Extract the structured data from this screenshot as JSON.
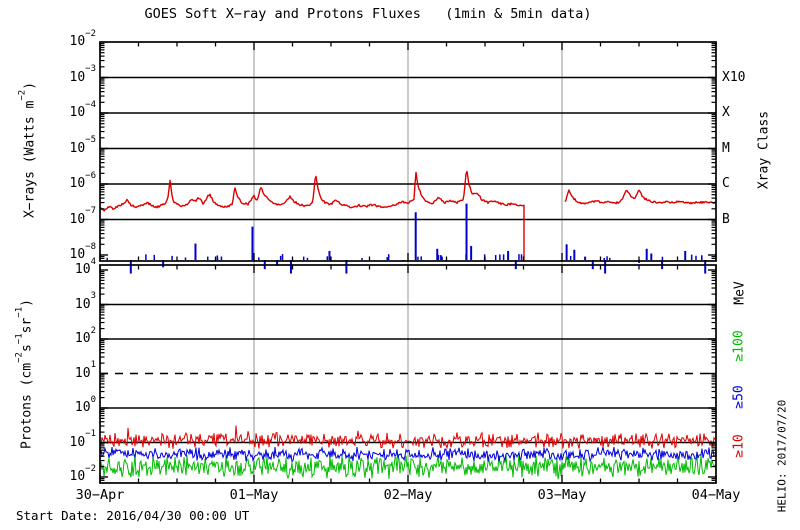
{
  "title": "GOES Soft X−ray and Protons Fluxes   (1min & 5min data)",
  "footer": {
    "start_date": "Start Date: 2016/04/30 00:00 UT"
  },
  "watermark": "HELIO: 2017/07/20",
  "colors": {
    "xray_red": "#dd0000",
    "xray_blue": "#0000cc",
    "proton_ge10": "#dd0000",
    "proton_ge50": "#0000dd",
    "proton_ge100": "#00bb00",
    "day_gridline": "#b4b4b4",
    "frame": "#000000"
  },
  "x_axis": {
    "labels": [
      "30−Apr",
      "01−May",
      "02−May",
      "03−May",
      "04−May"
    ],
    "minor_tick_hours": 6
  },
  "top_panel": {
    "ylabel_segments": [
      {
        "t": "X−rays (Watts m"
      },
      {
        "sup": "−2"
      },
      {
        "t": ")"
      }
    ],
    "tick_exponents": [
      -2,
      -3,
      -4,
      -5,
      -6,
      -7,
      -8
    ],
    "gridline_exponents": [
      -3,
      -4,
      -5,
      -6,
      -7
    ],
    "right_axis_title": "Xray Class",
    "class_labels": [
      {
        "label": "X10",
        "exp": -3
      },
      {
        "label": "X",
        "exp": -4
      },
      {
        "label": "M",
        "exp": -5
      },
      {
        "label": "C",
        "exp": -6
      },
      {
        "label": "B",
        "exp": -7
      }
    ]
  },
  "bottom_panel": {
    "ylabel_segments": [
      {
        "t": "Protons (cm"
      },
      {
        "sup": "−2"
      },
      {
        "t": "s"
      },
      {
        "sup": "−1"
      },
      {
        "t": "sr"
      },
      {
        "sup": "−1"
      },
      {
        "t": ")"
      }
    ],
    "tick_exponents": [
      4,
      3,
      2,
      1,
      0,
      -1,
      -2
    ],
    "gridline_exponents": [
      3,
      2,
      0,
      -1
    ],
    "dashed_exponents": [
      1
    ],
    "right_axis_title": "MeV",
    "energy_labels": [
      {
        "label": "≥100",
        "color": "#00bb00"
      },
      {
        "label": "≥50",
        "color": "#0000dd"
      },
      {
        "label": "≥10",
        "color": "#dd0000"
      }
    ]
  },
  "chart_data": [
    {
      "type": "line",
      "name": "GOES soft X-ray flux",
      "x_unit": "days since 2016-04-30 00:00 UT",
      "x_range": [
        0,
        4
      ],
      "y_unit": "Watts m^-2",
      "y_scale": "log",
      "y_range": [
        6.8e-09,
        0.01
      ],
      "series": [
        {
          "name": "xray-red-trace",
          "color": "#dd0000",
          "jitter_log": 0.028,
          "jitter_seed": 5,
          "data_gap": [
            2.75,
            3.02
          ],
          "gap_drop_to_floor": true,
          "segments": [
            [
              [
                0.0,
                2.1e-07
              ],
              [
                0.03,
                1.8e-07
              ],
              [
                0.06,
                2.3e-07
              ],
              [
                0.09,
                2e-07
              ],
              [
                0.12,
                2.4e-07
              ],
              [
                0.15,
                2.8e-07
              ],
              [
                0.18,
                3.6e-07
              ],
              [
                0.2,
                2.5e-07
              ],
              [
                0.24,
                2.2e-07
              ],
              [
                0.28,
                2.6e-07
              ],
              [
                0.31,
                3e-07
              ],
              [
                0.34,
                2.4e-07
              ],
              [
                0.37,
                2.2e-07
              ],
              [
                0.4,
                2.6e-07
              ],
              [
                0.43,
                3e-07
              ],
              [
                0.445,
                5e-07
              ],
              [
                0.455,
                1.4e-06
              ],
              [
                0.465,
                5e-07
              ],
              [
                0.48,
                3e-07
              ],
              [
                0.52,
                2.4e-07
              ],
              [
                0.56,
                2.6e-07
              ],
              [
                0.6,
                3.8e-07
              ],
              [
                0.62,
                3.2e-07
              ],
              [
                0.64,
                4.2e-07
              ],
              [
                0.67,
                2.8e-07
              ],
              [
                0.7,
                4.5e-07
              ],
              [
                0.715,
                5e-07
              ],
              [
                0.74,
                3e-07
              ],
              [
                0.78,
                2.4e-07
              ],
              [
                0.82,
                2.2e-07
              ],
              [
                0.86,
                2.8e-07
              ],
              [
                0.875,
                8.5e-07
              ],
              [
                0.89,
                4.5e-07
              ],
              [
                0.92,
                3e-07
              ],
              [
                0.96,
                2.7e-07
              ],
              [
                1.0,
                4.5e-07
              ],
              [
                1.02,
                3.4e-07
              ],
              [
                1.045,
                8.5e-07
              ],
              [
                1.06,
                5.5e-07
              ],
              [
                1.1,
                3.4e-07
              ],
              [
                1.14,
                2.8e-07
              ],
              [
                1.17,
                2.6e-07
              ],
              [
                1.2,
                3e-07
              ],
              [
                1.235,
                4.5e-07
              ],
              [
                1.26,
                3.2e-07
              ],
              [
                1.3,
                2.6e-07
              ],
              [
                1.34,
                2.4e-07
              ],
              [
                1.38,
                2.8e-07
              ],
              [
                1.4,
                1.9e-06
              ],
              [
                1.415,
                8e-07
              ],
              [
                1.43,
                4.2e-07
              ],
              [
                1.46,
                3e-07
              ],
              [
                1.5,
                2.7e-07
              ],
              [
                1.53,
                3.6e-07
              ],
              [
                1.56,
                2.8e-07
              ],
              [
                1.6,
                2.4e-07
              ],
              [
                1.64,
                2.2e-07
              ],
              [
                1.68,
                2.5e-07
              ],
              [
                1.72,
                2.3e-07
              ],
              [
                1.76,
                2.6e-07
              ],
              [
                1.8,
                2.4e-07
              ],
              [
                1.84,
                2.2e-07
              ],
              [
                1.88,
                2.4e-07
              ],
              [
                1.92,
                2.6e-07
              ],
              [
                1.96,
                3.2e-07
              ],
              [
                2.0,
                2.8e-07
              ],
              [
                2.04,
                4e-07
              ],
              [
                2.05,
                2.3e-06
              ],
              [
                2.065,
                9e-07
              ],
              [
                2.09,
                4.5e-07
              ],
              [
                2.12,
                3.2e-07
              ],
              [
                2.16,
                2.8e-07
              ],
              [
                2.2,
                4.2e-07
              ],
              [
                2.24,
                3e-07
              ],
              [
                2.28,
                3.4e-07
              ],
              [
                2.32,
                3e-07
              ],
              [
                2.36,
                3.6e-07
              ],
              [
                2.38,
                2.6e-06
              ],
              [
                2.395,
                1e-06
              ],
              [
                2.42,
                5e-07
              ],
              [
                2.45,
                5.5e-07
              ],
              [
                2.48,
                3.6e-07
              ],
              [
                2.52,
                3e-07
              ],
              [
                2.56,
                3.4e-07
              ],
              [
                2.6,
                2.8e-07
              ],
              [
                2.64,
                2.6e-07
              ],
              [
                2.68,
                2.8e-07
              ],
              [
                2.72,
                2.6e-07
              ],
              [
                2.75,
                2.5e-07
              ]
            ],
            [
              [
                3.02,
                3e-07
              ],
              [
                3.045,
                6.5e-07
              ],
              [
                3.07,
                4e-07
              ],
              [
                3.1,
                3.2e-07
              ],
              [
                3.14,
                2.8e-07
              ],
              [
                3.18,
                3e-07
              ],
              [
                3.22,
                3.4e-07
              ],
              [
                3.26,
                2.9e-07
              ],
              [
                3.3,
                3.2e-07
              ],
              [
                3.34,
                2.9e-07
              ],
              [
                3.38,
                3.1e-07
              ],
              [
                3.42,
                7e-07
              ],
              [
                3.445,
                4.5e-07
              ],
              [
                3.47,
                3.7e-07
              ],
              [
                3.5,
                6.5e-07
              ],
              [
                3.525,
                4.2e-07
              ],
              [
                3.56,
                3.4e-07
              ],
              [
                3.6,
                3.1e-07
              ],
              [
                3.64,
                3e-07
              ],
              [
                3.68,
                3.2e-07
              ],
              [
                3.72,
                3e-07
              ],
              [
                3.76,
                3.3e-07
              ],
              [
                3.8,
                3e-07
              ],
              [
                3.84,
                2.9e-07
              ],
              [
                3.88,
                3.1e-07
              ],
              [
                3.92,
                3e-07
              ],
              [
                3.96,
                3.1e-07
              ],
              [
                4.0,
                3e-07
              ]
            ]
          ]
        },
        {
          "name": "xray-blue-impulses",
          "color": "#0000cc",
          "style": "impulse",
          "baseline_stub_count": 46,
          "baseline_stub_seed": 7,
          "points": [
            [
              0.2,
              3e-09
            ],
            [
              0.41,
              4.5e-09
            ],
            [
              0.62,
              2.1e-08
            ],
            [
              0.99,
              6.3e-08
            ],
            [
              1.07,
              4e-09
            ],
            [
              1.15,
              5e-09
            ],
            [
              1.24,
              3e-09
            ],
            [
              1.49,
              1.3e-08
            ],
            [
              1.6,
              3e-09
            ],
            [
              1.97,
              7e-09
            ],
            [
              2.05,
              1.6e-07
            ],
            [
              2.19,
              1.5e-08
            ],
            [
              2.22,
              9e-09
            ],
            [
              2.38,
              2.8e-07
            ],
            [
              2.41,
              1.8e-08
            ],
            [
              2.65,
              1.3e-08
            ],
            [
              2.7,
              4e-09
            ],
            [
              3.03,
              2e-08
            ],
            [
              3.08,
              1.4e-08
            ],
            [
              3.15,
              9e-09
            ],
            [
              3.2,
              4e-09
            ],
            [
              3.28,
              3e-09
            ],
            [
              3.5,
              6e-09
            ],
            [
              3.55,
              1.5e-08
            ],
            [
              3.58,
              1.1e-08
            ],
            [
              3.65,
              4e-09
            ],
            [
              3.8,
              1.3e-08
            ],
            [
              3.93,
              3e-09
            ]
          ]
        }
      ]
    },
    {
      "type": "line",
      "name": "GOES proton flux",
      "x_unit": "days since 2016-04-30 00:00 UT",
      "x_range": [
        0,
        4
      ],
      "y_unit": "cm^-2 s^-1 sr^-1",
      "y_scale": "log",
      "y_range": [
        0.0067,
        14000.0
      ],
      "threshold_line": {
        "value": 10,
        "style": "dashed"
      },
      "series": [
        {
          "name": "≥10 MeV",
          "color": "#dd0000",
          "typical_flux": 0.11,
          "flux_range": [
            0.06,
            0.4
          ],
          "noise_model": {
            "log_base": -0.7,
            "log_span": 0.5,
            "seed": 11,
            "spike_prob": 0.015,
            "spike_log": 0.3
          }
        },
        {
          "name": "≥50 MeV",
          "color": "#0000dd",
          "typical_flux": 0.05,
          "flux_range": [
            0.03,
            0.09
          ],
          "noise_model": {
            "log_base": -1.12,
            "log_span": 0.45,
            "seed": 22,
            "spike_prob": 0,
            "spike_log": 0
          }
        },
        {
          "name": "≥100 MeV",
          "color": "#00bb00",
          "typical_flux": 0.025,
          "flux_range": [
            0.009,
            0.05
          ],
          "noise_model": {
            "log_base": -1.32,
            "log_span": 0.75,
            "seed": 33,
            "spike_prob": 0,
            "spike_log": 0
          }
        }
      ]
    }
  ]
}
